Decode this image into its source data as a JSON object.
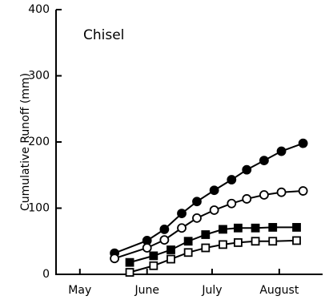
{
  "chart_data": {
    "type": "line",
    "annotation": "Chisel",
    "ylabel": "Cumulative Runoff (mm)",
    "xlim": [
      110,
      233
    ],
    "xticks": [
      {
        "value": 121,
        "label": "May"
      },
      {
        "value": 152,
        "label": "June"
      },
      {
        "value": 182,
        "label": "July"
      },
      {
        "value": 213,
        "label": "August"
      }
    ],
    "ylim": [
      0,
      400
    ],
    "yticks": [
      0,
      100,
      200,
      300,
      400
    ],
    "series": [
      {
        "marker": "filled-circle",
        "color": "#000000",
        "x": [
          137,
          152,
          160,
          168,
          175,
          183,
          191,
          198,
          206,
          214,
          224
        ],
        "values": [
          32,
          51,
          68,
          92,
          110,
          127,
          143,
          158,
          172,
          186,
          198
        ]
      },
      {
        "marker": "open-circle",
        "color": "#000000",
        "x": [
          137,
          152,
          160,
          168,
          175,
          183,
          191,
          198,
          206,
          214,
          224
        ],
        "values": [
          24,
          40,
          52,
          70,
          85,
          97,
          107,
          114,
          120,
          124,
          126
        ]
      },
      {
        "marker": "filled-square",
        "color": "#000000",
        "x": [
          144,
          155,
          163,
          171,
          179,
          187,
          194,
          202,
          210,
          221
        ],
        "values": [
          18,
          28,
          37,
          50,
          60,
          68,
          70,
          70,
          71,
          71
        ]
      },
      {
        "marker": "open-square",
        "color": "#000000",
        "x": [
          144,
          155,
          163,
          171,
          179,
          187,
          194,
          202,
          210,
          221
        ],
        "values": [
          3,
          13,
          23,
          33,
          40,
          45,
          48,
          50,
          50,
          51
        ]
      }
    ]
  }
}
